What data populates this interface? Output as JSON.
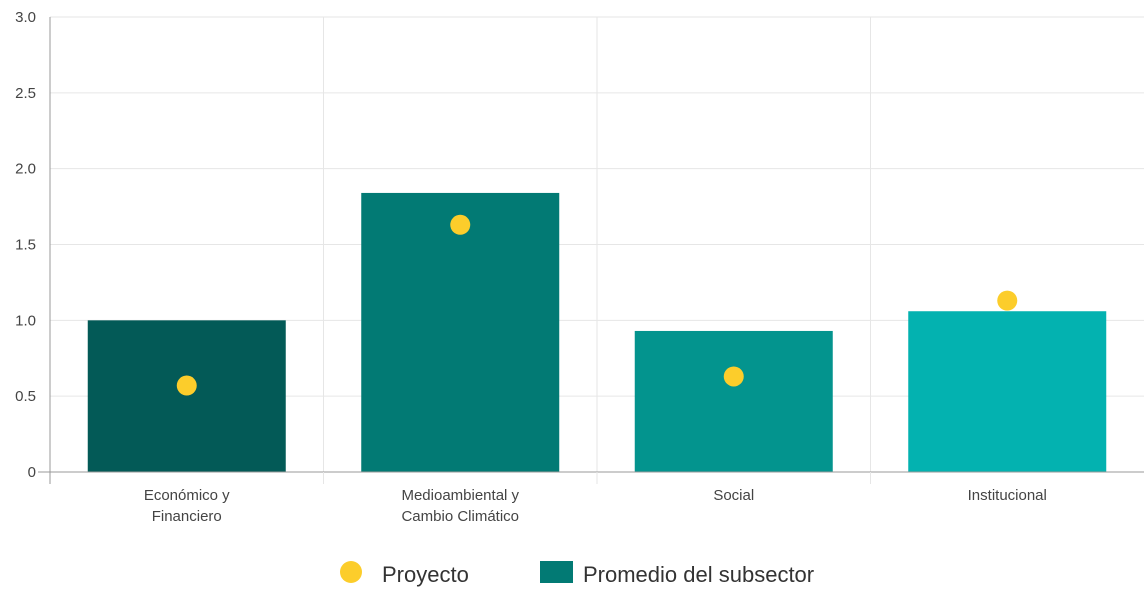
{
  "chart_data": {
    "type": "bar",
    "categories": [
      [
        "Económico y",
        "Financiero"
      ],
      [
        "Medioambiental y",
        "Cambio Climático"
      ],
      [
        "Social"
      ],
      [
        "Institucional"
      ]
    ],
    "series": [
      {
        "name": "Promedio del subsector",
        "kind": "bar",
        "values": [
          1.0,
          1.84,
          0.93,
          1.06
        ],
        "colors": [
          "#035a57",
          "#027a74",
          "#03948e",
          "#03b2b0"
        ],
        "legend_color": "#027a74"
      },
      {
        "name": "Proyecto",
        "kind": "point",
        "values": [
          0.57,
          1.63,
          0.63,
          1.13
        ],
        "color": "#fccd2b"
      }
    ],
    "ylim": [
      0,
      3
    ],
    "yticks": [
      "0",
      "0.5",
      "1.0",
      "1.5",
      "2.0",
      "2.5",
      "3.0"
    ],
    "ytick_values": [
      0,
      0.5,
      1.0,
      1.5,
      2.0,
      2.5,
      3.0
    ],
    "grid": true,
    "legend_position": "bottom-center",
    "legend_order": [
      "Proyecto",
      "Promedio del subsector"
    ]
  }
}
